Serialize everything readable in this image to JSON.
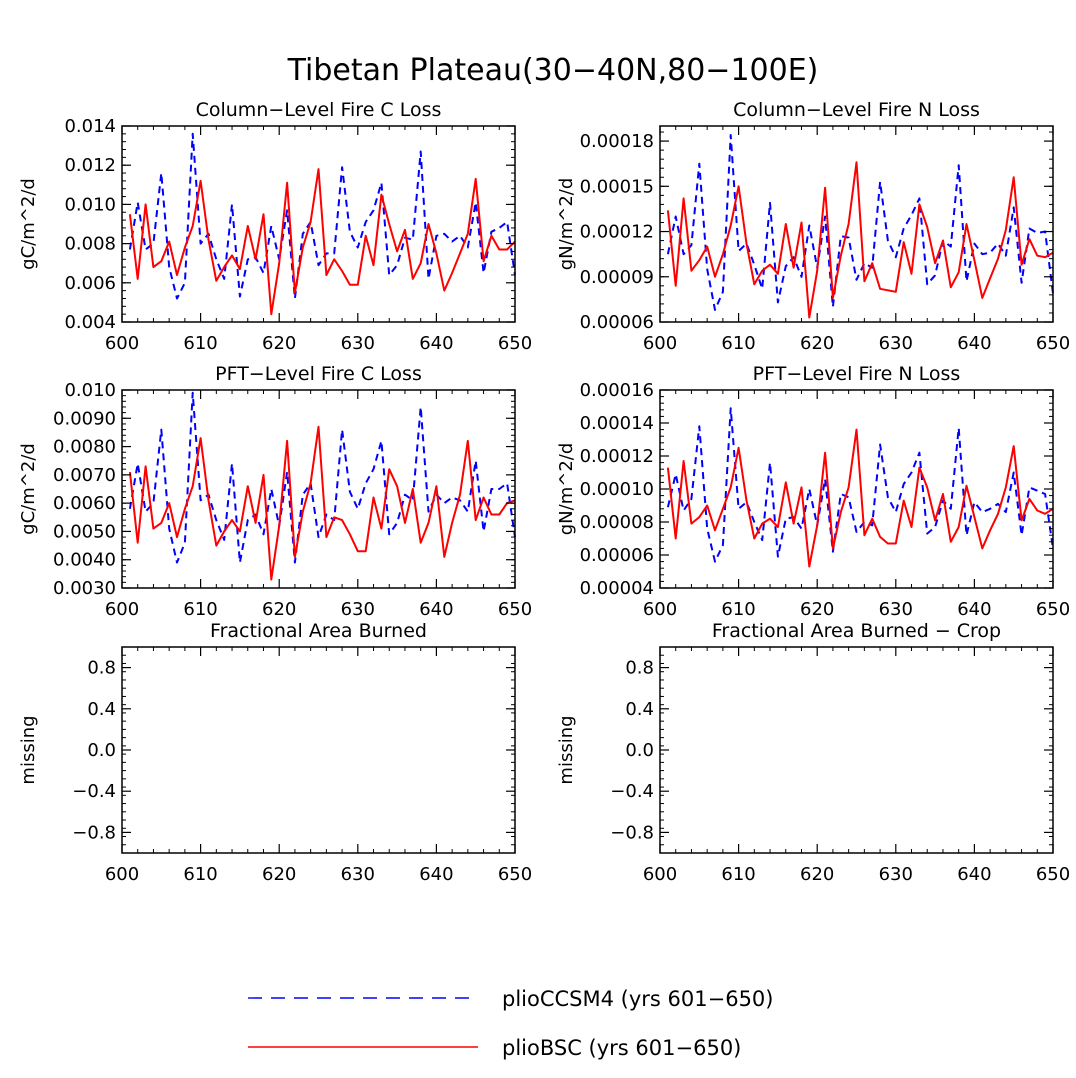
{
  "figure": {
    "title": "Tibetan Plateau(30−40N,80−100E)",
    "legend": [
      {
        "label": "plioCCSM4 (yrs 601−650)",
        "color": "#0000ff",
        "style": "dashed"
      },
      {
        "label": "plioBSC (yrs 601−650)",
        "color": "#ff0000",
        "style": "solid"
      }
    ]
  },
  "chart_data": [
    {
      "type": "line",
      "title": "Column−Level Fire C Loss",
      "ylabel": "gC/m^2/d",
      "xlim": [
        600,
        650
      ],
      "ylim": [
        0.004,
        0.014
      ],
      "xticks": [
        600,
        610,
        620,
        630,
        640,
        650
      ],
      "xtick_labels": [
        "600",
        "610",
        "620",
        "630",
        "640",
        "650"
      ],
      "yticks": [
        0.004,
        0.006,
        0.008,
        0.01,
        0.012,
        0.014
      ],
      "ytick_labels": [
        "0.004",
        "0.006",
        "0.008",
        "0.010",
        "0.012",
        "0.014"
      ],
      "x": [
        601,
        602,
        603,
        604,
        605,
        606,
        607,
        608,
        609,
        610,
        611,
        612,
        613,
        614,
        615,
        616,
        617,
        618,
        619,
        620,
        621,
        622,
        623,
        624,
        625,
        626,
        627,
        628,
        629,
        630,
        631,
        632,
        633,
        634,
        635,
        636,
        637,
        638,
        639,
        640,
        641,
        642,
        643,
        644,
        645,
        646,
        647,
        648,
        649,
        650
      ],
      "series": [
        {
          "name": "plioCCSM4 (yrs 601−650)",
          "color": "#0000ff",
          "style": "dashed",
          "values": [
            0.0077,
            0.0101,
            0.0077,
            0.008,
            0.0116,
            0.0068,
            0.0052,
            0.006,
            0.0136,
            0.008,
            0.0085,
            0.0072,
            0.0062,
            0.01,
            0.0053,
            0.0072,
            0.0073,
            0.0065,
            0.0089,
            0.0072,
            0.0097,
            0.0052,
            0.0085,
            0.0091,
            0.0069,
            0.0075,
            0.0075,
            0.0119,
            0.0086,
            0.0078,
            0.0091,
            0.0097,
            0.0111,
            0.0064,
            0.0069,
            0.0083,
            0.0082,
            0.0127,
            0.0062,
            0.0084,
            0.0085,
            0.0081,
            0.0084,
            0.0078,
            0.0101,
            0.0065,
            0.0086,
            0.0088,
            0.0091,
            0.0064
          ]
        },
        {
          "name": "plioBSC (yrs 601−650)",
          "color": "#ff0000",
          "style": "solid",
          "values": [
            0.0095,
            0.0062,
            0.01,
            0.0068,
            0.0071,
            0.0081,
            0.0064,
            0.0078,
            0.0089,
            0.0112,
            0.0082,
            0.0061,
            0.0068,
            0.0074,
            0.0067,
            0.0089,
            0.0072,
            0.0095,
            0.0044,
            0.007,
            0.0111,
            0.0055,
            0.0078,
            0.0091,
            0.0118,
            0.0064,
            0.0072,
            0.0066,
            0.0059,
            0.0059,
            0.0084,
            0.0069,
            0.0105,
            0.009,
            0.0076,
            0.0087,
            0.0062,
            0.007,
            0.009,
            0.0075,
            0.0056,
            0.0065,
            0.0075,
            0.0085,
            0.0113,
            0.0071,
            0.0084,
            0.0077,
            0.0077,
            0.0081
          ]
        }
      ]
    },
    {
      "type": "line",
      "title": "Column−Level Fire N Loss",
      "ylabel": "gN/m^2/d",
      "xlim": [
        600,
        650
      ],
      "ylim": [
        6e-05,
        0.00019
      ],
      "xticks": [
        600,
        610,
        620,
        630,
        640,
        650
      ],
      "xtick_labels": [
        "600",
        "610",
        "620",
        "630",
        "640",
        "650"
      ],
      "yticks": [
        6e-05,
        9e-05,
        0.00012,
        0.00015,
        0.00018
      ],
      "ytick_labels": [
        "0.00006",
        "0.00009",
        "0.00012",
        "0.00015",
        "0.00018"
      ],
      "x": [
        601,
        602,
        603,
        604,
        605,
        606,
        607,
        608,
        609,
        610,
        611,
        612,
        613,
        614,
        615,
        616,
        617,
        618,
        619,
        620,
        621,
        622,
        623,
        624,
        625,
        626,
        627,
        628,
        629,
        630,
        631,
        632,
        633,
        634,
        635,
        636,
        637,
        638,
        639,
        640,
        641,
        642,
        643,
        644,
        645,
        646,
        647,
        648,
        649,
        650
      ],
      "series": [
        {
          "name": "plioCCSM4 (yrs 601−650)",
          "color": "#0000ff",
          "style": "dashed",
          "values": [
            0.000105,
            0.00013,
            0.000105,
            0.000111,
            0.000165,
            9.5e-05,
            6.8e-05,
            8e-05,
            0.000184,
            0.000107,
            0.000112,
            9.8e-05,
            8.2e-05,
            0.000139,
            7.3e-05,
            9.7e-05,
            0.000103,
            9e-05,
            0.000124,
            9.6e-05,
            0.00013,
            7e-05,
            0.000117,
            0.000116,
            8.8e-05,
            9.9e-05,
            9.6e-05,
            0.000153,
            0.000114,
            0.000103,
            0.000122,
            0.000131,
            0.000142,
            8.5e-05,
            9.1e-05,
            0.000114,
            0.00011,
            0.000164,
            8.7e-05,
            0.000112,
            0.000105,
            0.000106,
            0.000112,
            0.000104,
            0.000136,
            8.6e-05,
            0.000122,
            0.000119,
            0.00012,
            7.9e-05
          ]
        },
        {
          "name": "plioBSC (yrs 601−650)",
          "color": "#ff0000",
          "style": "solid",
          "values": [
            0.000134,
            8.4e-05,
            0.000142,
            9.4e-05,
            0.000101,
            0.00011,
            9e-05,
            0.000105,
            0.000124,
            0.00015,
            0.000112,
            8.5e-05,
            9.4e-05,
            9.8e-05,
            9.2e-05,
            0.000125,
            9.6e-05,
            0.000126,
            6.3e-05,
            9.4e-05,
            0.000149,
            7.6e-05,
            0.000104,
            0.000125,
            0.000166,
            8.7e-05,
            9.9e-05,
            8.2e-05,
            8.1e-05,
            8e-05,
            0.000113,
            9.2e-05,
            0.000138,
            0.000123,
            9.9e-05,
            0.000114,
            8.3e-05,
            9.3e-05,
            0.000125,
            0.000101,
            7.6e-05,
            8.9e-05,
            0.000102,
            0.000121,
            0.000156,
            9.8e-05,
            0.000115,
            0.000104,
            0.000103,
            0.000106
          ]
        }
      ]
    },
    {
      "type": "line",
      "title": "PFT−Level Fire C Loss",
      "ylabel": "gC/m^2/d",
      "xlim": [
        600,
        650
      ],
      "ylim": [
        0.003,
        0.01
      ],
      "xticks": [
        600,
        610,
        620,
        630,
        640,
        650
      ],
      "xtick_labels": [
        "600",
        "610",
        "620",
        "630",
        "640",
        "650"
      ],
      "yticks": [
        0.003,
        0.004,
        0.005,
        0.006,
        0.007,
        0.008,
        0.009,
        0.01
      ],
      "ytick_labels": [
        "0.0030",
        "0.0040",
        "0.0050",
        "0.0060",
        "0.0070",
        "0.0080",
        "0.0090",
        "0.010"
      ],
      "x": [
        601,
        602,
        603,
        604,
        605,
        606,
        607,
        608,
        609,
        610,
        611,
        612,
        613,
        614,
        615,
        616,
        617,
        618,
        619,
        620,
        621,
        622,
        623,
        624,
        625,
        626,
        627,
        628,
        629,
        630,
        631,
        632,
        633,
        634,
        635,
        636,
        637,
        638,
        639,
        640,
        641,
        642,
        643,
        644,
        645,
        646,
        647,
        648,
        649,
        650
      ],
      "series": [
        {
          "name": "plioCCSM4 (yrs 601−650)",
          "color": "#0000ff",
          "style": "dashed",
          "values": [
            0.0058,
            0.0074,
            0.0057,
            0.006,
            0.0086,
            0.0051,
            0.0039,
            0.0046,
            0.0099,
            0.0061,
            0.0063,
            0.0054,
            0.0047,
            0.0074,
            0.0039,
            0.0054,
            0.0056,
            0.0049,
            0.0065,
            0.0052,
            0.0071,
            0.0039,
            0.0063,
            0.0067,
            0.0048,
            0.0056,
            0.0054,
            0.0086,
            0.0064,
            0.0058,
            0.0067,
            0.0072,
            0.0082,
            0.0049,
            0.0053,
            0.0063,
            0.0061,
            0.0094,
            0.0057,
            0.0063,
            0.006,
            0.0062,
            0.0061,
            0.0057,
            0.0075,
            0.005,
            0.0065,
            0.0065,
            0.0067,
            0.0048
          ]
        },
        {
          "name": "plioBSC (yrs 601−650)",
          "color": "#ff0000",
          "style": "solid",
          "values": [
            0.0071,
            0.0046,
            0.0073,
            0.0051,
            0.0053,
            0.006,
            0.0048,
            0.0058,
            0.0066,
            0.0083,
            0.0061,
            0.0045,
            0.005,
            0.0054,
            0.005,
            0.0066,
            0.0053,
            0.007,
            0.0033,
            0.0052,
            0.0082,
            0.0041,
            0.0057,
            0.0067,
            0.0087,
            0.0048,
            0.0055,
            0.0054,
            0.0049,
            0.0043,
            0.0043,
            0.0062,
            0.0051,
            0.0072,
            0.0066,
            0.0053,
            0.0065,
            0.0046,
            0.0053,
            0.0066,
            0.0041,
            0.0053,
            0.0063,
            0.0082,
            0.0054,
            0.0062,
            0.0056,
            0.0056,
            0.006,
            0.0061
          ]
        }
      ]
    },
    {
      "type": "line",
      "title": "PFT−Level Fire N Loss",
      "ylabel": "gN/m^2/d",
      "xlim": [
        600,
        650
      ],
      "ylim": [
        4e-05,
        0.00016
      ],
      "xticks": [
        600,
        610,
        620,
        630,
        640,
        650
      ],
      "xtick_labels": [
        "600",
        "610",
        "620",
        "630",
        "640",
        "650"
      ],
      "yticks": [
        4e-05,
        6e-05,
        8e-05,
        0.0001,
        0.00012,
        0.00014,
        0.00016
      ],
      "ytick_labels": [
        "0.00004",
        "0.00006",
        "0.00008",
        "0.00010",
        "0.00012",
        "0.00014",
        "0.00016"
      ],
      "x": [
        601,
        602,
        603,
        604,
        605,
        606,
        607,
        608,
        609,
        610,
        611,
        612,
        613,
        614,
        615,
        616,
        617,
        618,
        619,
        620,
        621,
        622,
        623,
        624,
        625,
        626,
        627,
        628,
        629,
        630,
        631,
        632,
        633,
        634,
        635,
        636,
        637,
        638,
        639,
        640,
        641,
        642,
        643,
        644,
        645,
        646,
        647,
        648,
        649,
        650
      ],
      "series": [
        {
          "name": "plioCCSM4 (yrs 601−650)",
          "color": "#0000ff",
          "style": "dashed",
          "values": [
            8.9e-05,
            0.000109,
            8.7e-05,
            9.4e-05,
            0.000138,
            7.6e-05,
            5.6e-05,
            6.6e-05,
            0.000149,
            8.8e-05,
            9.2e-05,
            8e-05,
            6.9e-05,
            0.000116,
            5.9e-05,
            8.2e-05,
            8.3e-05,
            7.6e-05,
            0.0001,
            7.8e-05,
            0.000106,
            6.2e-05,
            9.7e-05,
            9.5e-05,
            7.4e-05,
            8e-05,
            7.8e-05,
            0.000127,
            9.5e-05,
            8.6e-05,
            0.000103,
            0.00011,
            0.000122,
            7.3e-05,
            7.7e-05,
            9.3e-05,
            8.8e-05,
            0.000137,
            7.2e-05,
            9.2e-05,
            8.6e-05,
            8.8e-05,
            9.1e-05,
            8.6e-05,
            0.00011,
            7.2e-05,
            0.000101,
            9.9e-05,
            9.7e-05,
            6.4e-05
          ]
        },
        {
          "name": "plioBSC (yrs 601−650)",
          "color": "#ff0000",
          "style": "solid",
          "values": [
            0.000113,
            7e-05,
            0.000117,
            7.9e-05,
            8.3e-05,
            9e-05,
            7.5e-05,
            8.8e-05,
            0.000101,
            0.000125,
            9.3e-05,
            7e-05,
            7.9e-05,
            8.2e-05,
            7.7e-05,
            0.000104,
            7.9e-05,
            0.000101,
            5.3e-05,
            7.8e-05,
            0.000122,
            6.4e-05,
            8.6e-05,
            0.000101,
            0.000136,
            7.2e-05,
            8.2e-05,
            7.1e-05,
            6.7e-05,
            6.7e-05,
            9.3e-05,
            7.7e-05,
            0.000113,
            0.000101,
            8.1e-05,
            9.7e-05,
            6.8e-05,
            7.7e-05,
            0.000102,
            8.3e-05,
            6.4e-05,
            7.5e-05,
            8.5e-05,
            0.000101,
            0.000126,
            8.1e-05,
            9.4e-05,
            8.7e-05,
            8.5e-05,
            8.8e-05
          ]
        }
      ]
    },
    {
      "type": "line",
      "title": "Fractional Area Burned",
      "ylabel": "missing",
      "xlim": [
        600,
        650
      ],
      "ylim": [
        -1.0,
        1.0
      ],
      "xticks": [
        600,
        610,
        620,
        630,
        640,
        650
      ],
      "xtick_labels": [
        "600",
        "610",
        "620",
        "630",
        "640",
        "650"
      ],
      "yticks": [
        -0.8,
        -0.4,
        0.0,
        0.4,
        0.8
      ],
      "ytick_labels": [
        "−0.8",
        "−0.4",
        "0.0",
        "0.4",
        "0.8"
      ],
      "x": [],
      "series": []
    },
    {
      "type": "line",
      "title": "Fractional Area Burned − Crop",
      "ylabel": "missing",
      "xlim": [
        600,
        650
      ],
      "ylim": [
        -1.0,
        1.0
      ],
      "xticks": [
        600,
        610,
        620,
        630,
        640,
        650
      ],
      "xtick_labels": [
        "600",
        "610",
        "620",
        "630",
        "640",
        "650"
      ],
      "yticks": [
        -0.8,
        -0.4,
        0.0,
        0.4,
        0.8
      ],
      "ytick_labels": [
        "−0.8",
        "−0.4",
        "0.0",
        "0.4",
        "0.8"
      ],
      "x": [],
      "series": []
    }
  ]
}
